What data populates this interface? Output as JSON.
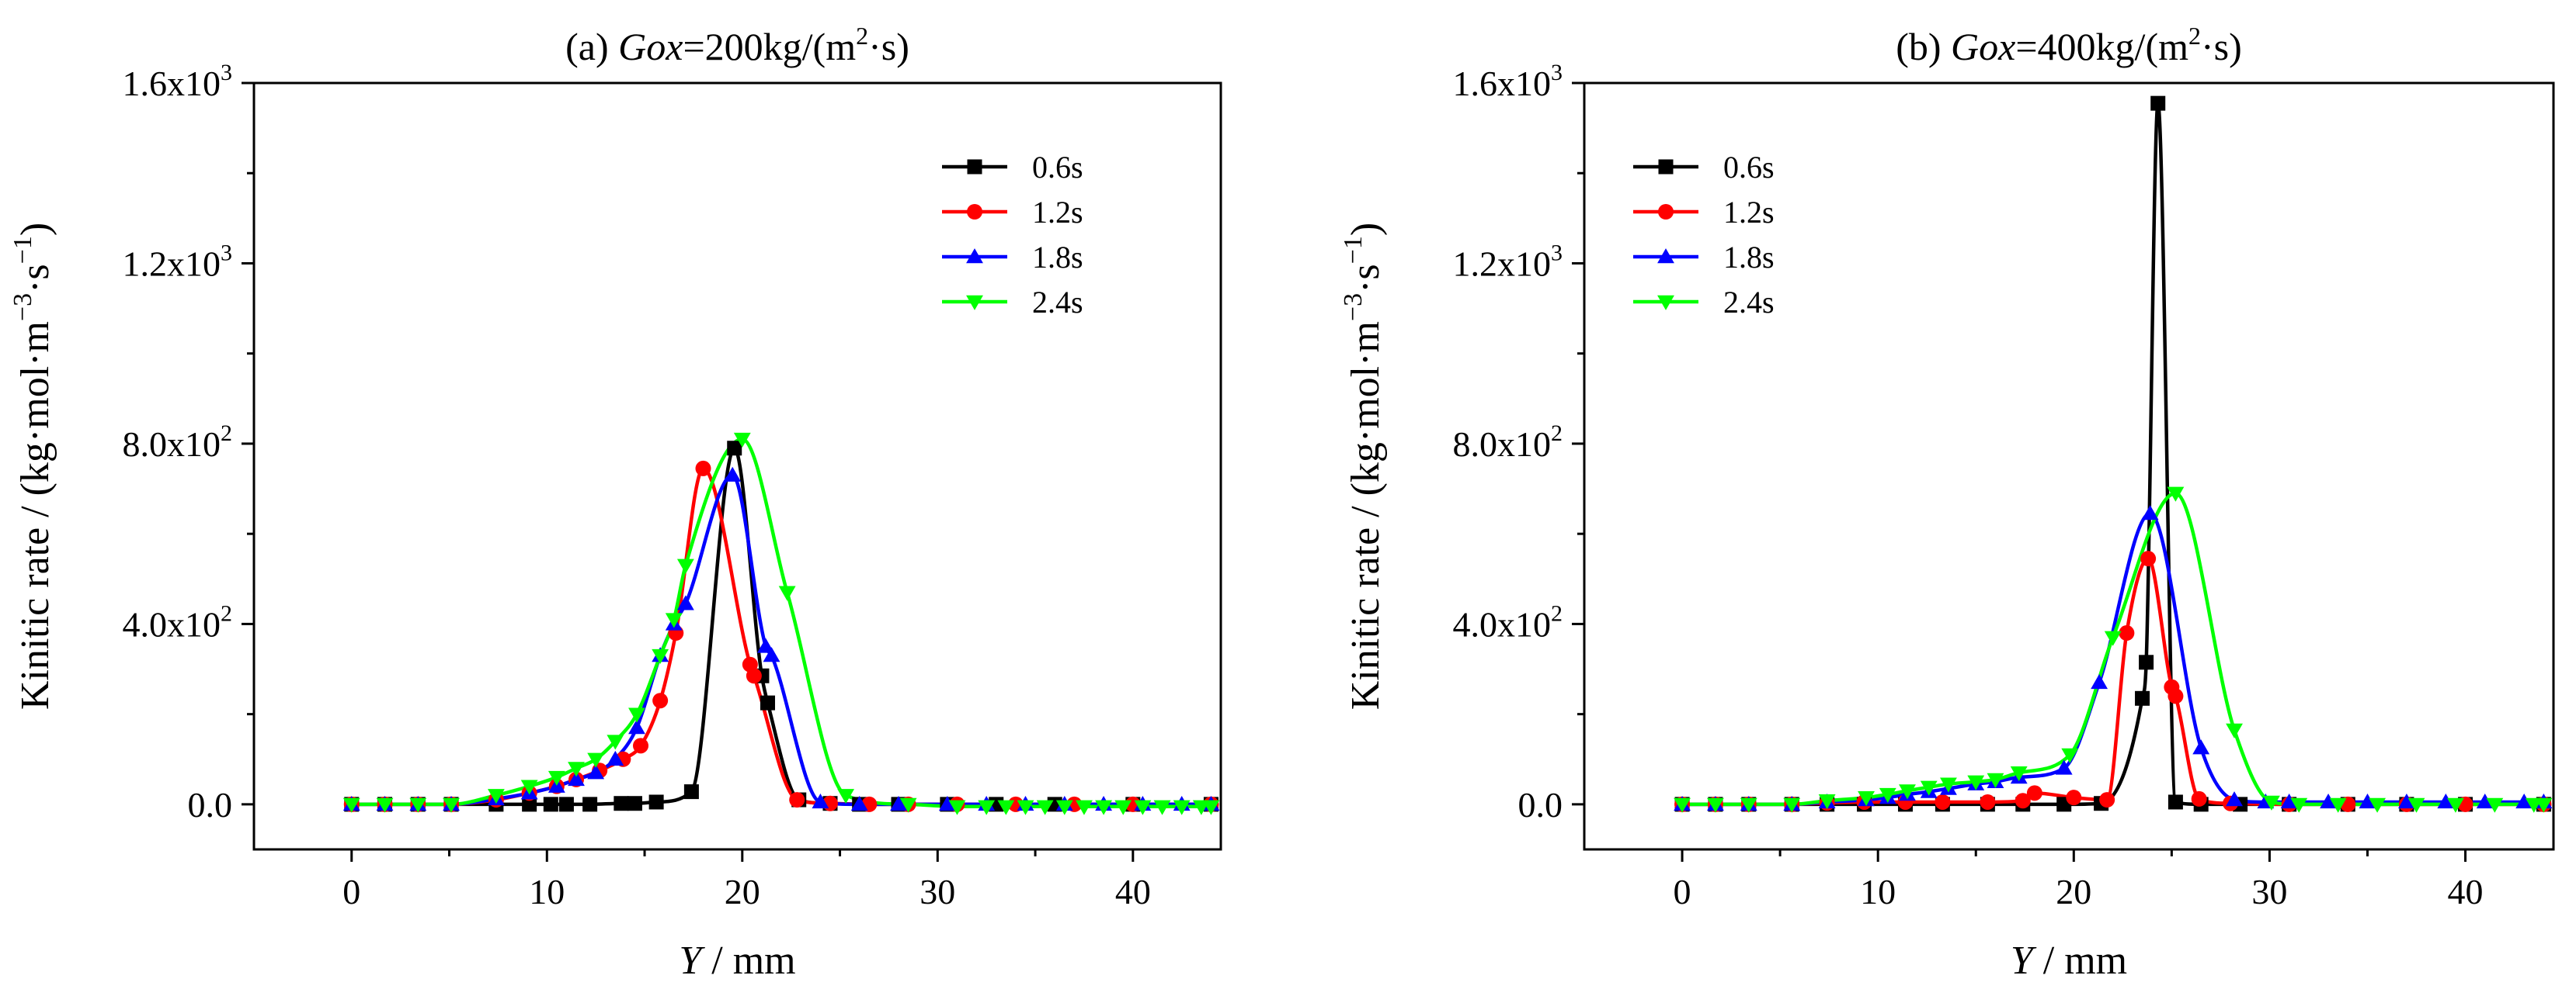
{
  "chart_data": [
    {
      "type": "line",
      "title": {
        "prefix": "(a) ",
        "var": "Gox",
        "eq": "=200kg/(m",
        "sup": "2",
        "suffix": "·s)"
      },
      "xlabel": {
        "var": "Y",
        "rest": " / mm"
      },
      "ylabel": {
        "pre": "Kinitic rate / (kg·mol·m",
        "sup1": "−3",
        "mid": "·s",
        "sup2": "−1",
        "post": ")"
      },
      "xlim": [
        -5,
        44.5
      ],
      "ylim": [
        -100,
        1600
      ],
      "xticks": [
        0,
        10,
        20,
        30,
        40
      ],
      "xtick_labels": [
        "0",
        "10",
        "20",
        "30",
        "40"
      ],
      "yticks": [
        0,
        400,
        800,
        1200,
        1600
      ],
      "ytick_labels": [
        {
          "base": "0.0",
          "sup": ""
        },
        {
          "base": "4.0x10",
          "sup": "2"
        },
        {
          "base": "8.0x10",
          "sup": "2"
        },
        {
          "base": "1.2x10",
          "sup": "3"
        },
        {
          "base": "1.6x10",
          "sup": "3"
        }
      ],
      "legend_position": "top-right",
      "series": [
        {
          "name": "0.6s",
          "color": "#000000",
          "marker": "square",
          "x": [
            0,
            1.7,
            3.4,
            5.1,
            7.4,
            9.1,
            10.2,
            11.0,
            12.2,
            13.8,
            14.5,
            15.6,
            17.4,
            19.6,
            21.0,
            21.3,
            22.9,
            24.5,
            26.0,
            28.0,
            30.5,
            33.0,
            36.0,
            40.0,
            44.0
          ],
          "y": [
            0,
            0,
            0,
            0,
            0,
            0,
            0,
            0,
            0,
            2,
            2,
            5,
            28,
            790,
            285,
            225,
            10,
            2,
            0,
            0,
            0,
            0,
            0,
            0,
            0
          ]
        },
        {
          "name": "1.2s",
          "color": "#ff0000",
          "marker": "circle",
          "x": [
            0,
            1.7,
            3.4,
            5.1,
            7.4,
            9.1,
            10.5,
            11.5,
            12.7,
            13.9,
            14.8,
            15.8,
            16.6,
            18.0,
            20.4,
            20.6,
            22.8,
            24.5,
            26.5,
            28.5,
            31.0,
            34.0,
            37.0,
            40.0,
            44.0
          ],
          "y": [
            0,
            0,
            0,
            0,
            10,
            25,
            40,
            55,
            75,
            100,
            130,
            230,
            380,
            745,
            310,
            285,
            10,
            2,
            0,
            0,
            0,
            0,
            0,
            0,
            0
          ]
        },
        {
          "name": "1.8s",
          "color": "#0000ff",
          "marker": "triangle-up",
          "x": [
            0,
            1.7,
            3.4,
            5.1,
            7.4,
            9.1,
            10.5,
            11.5,
            12.5,
            13.5,
            14.6,
            15.8,
            16.5,
            17.1,
            19.5,
            21.2,
            21.5,
            24.0,
            26.0,
            28.0,
            30.5,
            32.5,
            34.5,
            36.5,
            38.5,
            40.5,
            42.5,
            44.0
          ],
          "y": [
            0,
            0,
            0,
            0,
            12,
            25,
            40,
            55,
            70,
            100,
            170,
            330,
            400,
            445,
            730,
            350,
            330,
            5,
            0,
            0,
            0,
            0,
            0,
            0,
            0,
            0,
            0,
            0
          ]
        },
        {
          "name": "2.4s",
          "color": "#00ff00",
          "marker": "triangle-down",
          "x": [
            0,
            1.7,
            3.4,
            5.1,
            7.4,
            9.1,
            10.5,
            11.5,
            12.5,
            13.5,
            14.6,
            15.8,
            16.5,
            17.1,
            20.0,
            22.3,
            25.3,
            28.5,
            31.0,
            32.5,
            33.5,
            34.5,
            35.5,
            36.5,
            37.5,
            38.5,
            39.5,
            40.5,
            41.5,
            42.5,
            43.5,
            44.0
          ],
          "y": [
            0,
            0,
            0,
            0,
            20,
            40,
            60,
            80,
            100,
            140,
            200,
            330,
            410,
            530,
            810,
            470,
            20,
            0,
            -5,
            -5,
            -5,
            -5,
            -5,
            -5,
            -5,
            -5,
            -5,
            -5,
            -5,
            -5,
            -5,
            -5
          ]
        }
      ]
    },
    {
      "type": "line",
      "title": {
        "prefix": "(b) ",
        "var": "Gox",
        "eq": "=400kg/(m",
        "sup": "2",
        "suffix": "·s)"
      },
      "xlabel": {
        "var": "Y",
        "rest": " / mm"
      },
      "ylabel": {
        "pre": "Kinitic rate / (kg·mol·m",
        "sup1": "−3",
        "mid": "·s",
        "sup2": "−1",
        "post": ")"
      },
      "xlim": [
        -5,
        44.5
      ],
      "ylim": [
        -100,
        1600
      ],
      "xticks": [
        0,
        10,
        20,
        30,
        40
      ],
      "xtick_labels": [
        "0",
        "10",
        "20",
        "30",
        "40"
      ],
      "yticks": [
        0,
        400,
        800,
        1200,
        1600
      ],
      "ytick_labels": [
        {
          "base": "0.0",
          "sup": ""
        },
        {
          "base": "4.0x10",
          "sup": "2"
        },
        {
          "base": "8.0x10",
          "sup": "2"
        },
        {
          "base": "1.2x10",
          "sup": "3"
        },
        {
          "base": "1.6x10",
          "sup": "3"
        }
      ],
      "legend_position": "top-left",
      "series": [
        {
          "name": "0.6s",
          "color": "#000000",
          "marker": "square",
          "x": [
            0,
            1.7,
            3.4,
            5.6,
            7.4,
            9.3,
            11.4,
            13.3,
            15.6,
            17.4,
            19.5,
            21.4,
            23.5,
            23.7,
            24.3,
            25.2,
            26.5,
            28.5,
            31.0,
            34.0,
            37.0,
            40.0,
            44.0
          ],
          "y": [
            0,
            0,
            0,
            0,
            0,
            0,
            0,
            0,
            0,
            0,
            0,
            2,
            235,
            315,
            1555,
            5,
            0,
            0,
            0,
            0,
            0,
            0,
            0
          ]
        },
        {
          "name": "1.2s",
          "color": "#ff0000",
          "marker": "circle",
          "x": [
            0,
            1.7,
            3.4,
            5.6,
            7.4,
            9.3,
            11.4,
            13.3,
            15.6,
            17.4,
            18.0,
            20.0,
            21.7,
            22.7,
            23.8,
            25.0,
            25.2,
            26.4,
            28.0,
            31.0,
            34.0,
            37.0,
            40.0,
            44.0
          ],
          "y": [
            0,
            0,
            0,
            0,
            3,
            5,
            5,
            5,
            5,
            8,
            25,
            15,
            10,
            380,
            545,
            260,
            240,
            12,
            2,
            0,
            0,
            0,
            0,
            0
          ]
        },
        {
          "name": "1.8s",
          "color": "#0000ff",
          "marker": "triangle-up",
          "x": [
            0,
            1.7,
            3.4,
            5.6,
            7.4,
            9.4,
            10.5,
            11.5,
            12.6,
            13.6,
            15.0,
            16.0,
            17.2,
            19.5,
            21.3,
            23.9,
            26.5,
            28.2,
            29.8,
            31.0,
            33.0,
            35.0,
            37.0,
            39.0,
            41.0,
            43.0,
            44.0
          ],
          "y": [
            0,
            0,
            0,
            0,
            5,
            10,
            15,
            22,
            28,
            35,
            45,
            50,
            60,
            80,
            270,
            645,
            125,
            10,
            5,
            5,
            5,
            5,
            5,
            5,
            5,
            5,
            5
          ]
        },
        {
          "name": "2.4s",
          "color": "#00ff00",
          "marker": "triangle-down",
          "x": [
            0,
            1.7,
            3.4,
            5.6,
            7.4,
            9.4,
            10.5,
            11.5,
            12.6,
            13.6,
            15.0,
            16.0,
            17.2,
            19.8,
            22.0,
            25.2,
            28.2,
            30.1,
            31.5,
            33.5,
            35.5,
            37.5,
            39.5,
            41.5,
            43.5,
            44.0
          ],
          "y": [
            0,
            0,
            0,
            0,
            8,
            15,
            22,
            30,
            38,
            45,
            50,
            55,
            70,
            110,
            370,
            690,
            165,
            5,
            0,
            0,
            0,
            0,
            0,
            0,
            0,
            0
          ]
        }
      ]
    }
  ]
}
